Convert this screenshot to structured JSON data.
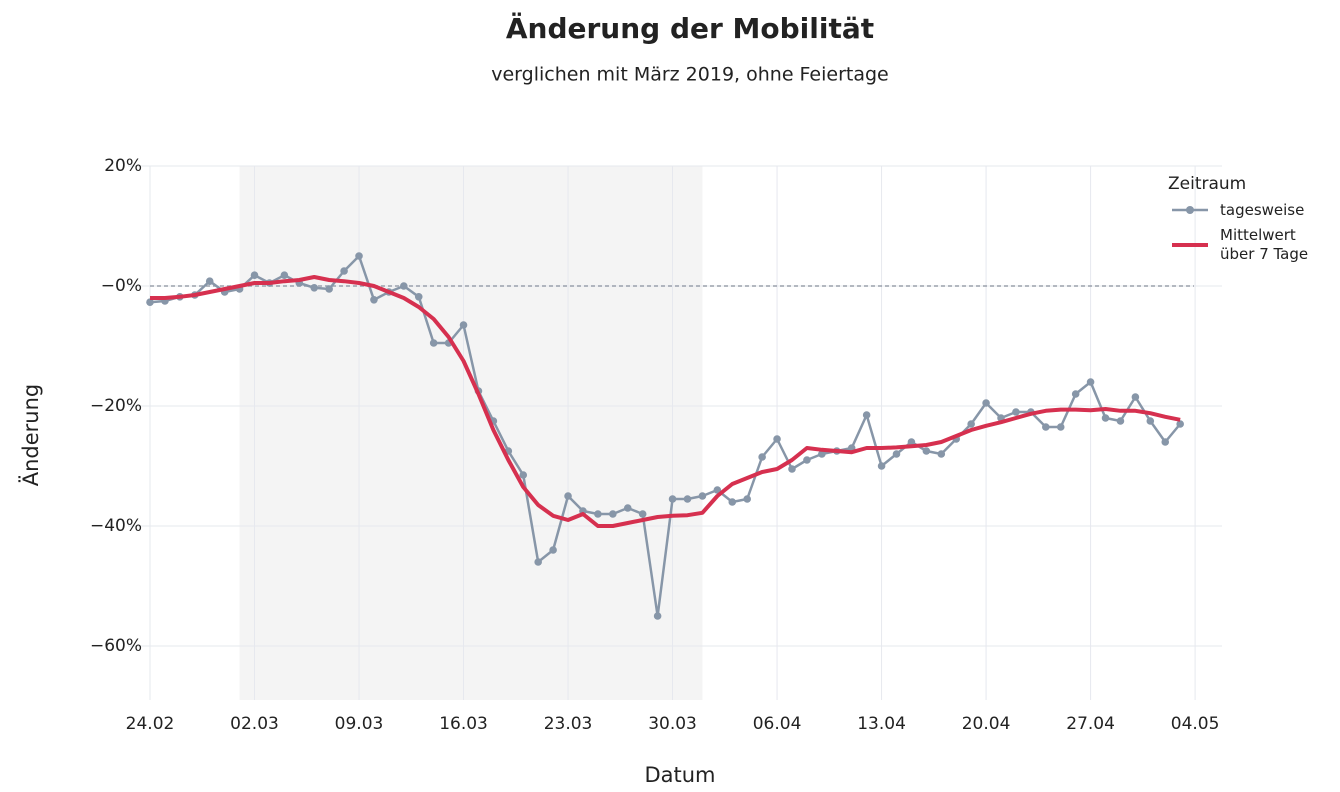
{
  "chart_data": {
    "type": "line",
    "title": "Änderung der Mobilität",
    "subtitle": "verglichen mit März 2019, ohne Feiertage",
    "x_label": "Datum",
    "y_label": "Änderung",
    "legend_title": "Zeitraum",
    "legend_position": "top-right",
    "grid": true,
    "hline": 0,
    "shaded_x": [
      "01.03",
      "01.04"
    ],
    "x": [
      "24.02",
      "25.02",
      "26.02",
      "27.02",
      "28.02",
      "29.02",
      "01.03",
      "02.03",
      "03.03",
      "04.03",
      "05.03",
      "06.03",
      "07.03",
      "08.03",
      "09.03",
      "10.03",
      "11.03",
      "12.03",
      "13.03",
      "14.03",
      "15.03",
      "16.03",
      "17.03",
      "18.03",
      "19.03",
      "20.03",
      "21.03",
      "22.03",
      "23.03",
      "24.03",
      "25.03",
      "26.03",
      "27.03",
      "28.03",
      "29.03",
      "30.03",
      "31.03",
      "01.04",
      "02.04",
      "03.04",
      "04.04",
      "05.04",
      "06.04",
      "07.04",
      "08.04",
      "09.04",
      "10.04",
      "11.04",
      "12.04",
      "13.04",
      "14.04",
      "15.04",
      "16.04",
      "17.04",
      "18.04",
      "19.04",
      "20.04",
      "21.04",
      "22.04",
      "23.04",
      "24.04",
      "25.04",
      "26.04",
      "27.04",
      "28.04",
      "29.04",
      "30.04",
      "01.05",
      "02.05",
      "03.05",
      "04.05"
    ],
    "xticks": [
      "24.02",
      "02.03",
      "09.03",
      "16.03",
      "23.03",
      "30.03",
      "06.04",
      "13.04",
      "20.04",
      "27.04",
      "04.05"
    ],
    "ylim": [
      -69,
      20
    ],
    "yticks": [
      {
        "value": -60,
        "label": "−60%"
      },
      {
        "value": -40,
        "label": "−40%"
      },
      {
        "value": -20,
        "label": "−20%"
      },
      {
        "value": 0,
        "label": "−0%"
      },
      {
        "value": 20,
        "label": "20%"
      }
    ],
    "series": [
      {
        "name": "tagesweise",
        "color": "#8796a8",
        "markers": true,
        "values": [
          -2.7,
          -2.5,
          -1.8,
          -1.5,
          0.8,
          -1,
          -0.5,
          1.8,
          0.5,
          1.8,
          0.5,
          -0.3,
          -0.5,
          2.5,
          5,
          -2.3,
          -1,
          0,
          -1.8,
          -9.5,
          -9.5,
          -6.5,
          -17.5,
          -22.5,
          -27.5,
          -31.5,
          -46,
          -44,
          -35,
          -37.5,
          -38,
          -38,
          -37,
          -38,
          -55,
          -35.5,
          -35.5,
          -35,
          -34,
          -36,
          -35.5,
          -28.5,
          -25.5,
          -30.5,
          -29,
          -28,
          -27.5,
          -27,
          -21.5,
          -30,
          -28,
          -26,
          -27.5,
          -28,
          -25.5,
          -23,
          -19.5,
          -22,
          -21,
          -21,
          -23.5,
          -23.5,
          -18,
          -16,
          -22,
          -22.5,
          -18.5,
          -22.5,
          -26,
          -23,
          null
        ]
      },
      {
        "name": "Mittelwert über 7 Tage",
        "color": "#d6304f",
        "markers": false,
        "values": [
          -2,
          -2,
          -1.8,
          -1.5,
          -1,
          -0.5,
          0,
          0.5,
          0.5,
          0.8,
          1,
          1.5,
          1,
          0.8,
          0.5,
          0,
          -1,
          -2,
          -3.5,
          -5.5,
          -8.5,
          -12.5,
          -18,
          -24,
          -29,
          -33.5,
          -36.5,
          -38.3,
          -39,
          -38,
          -40,
          -40,
          -39.5,
          -39,
          -38.5,
          -38.3,
          -38.2,
          -37.8,
          -35,
          -33,
          -32,
          -31,
          -30.5,
          -29,
          -27,
          -27.3,
          -27.5,
          -27.7,
          -27,
          -27,
          -26.9,
          -26.7,
          -26.5,
          -26,
          -25,
          -24,
          -23.3,
          -22.7,
          -22,
          -21.3,
          -20.8,
          -20.6,
          -20.6,
          -20.7,
          -20.5,
          -20.8,
          -20.8,
          -21.2,
          -21.8,
          -22.3,
          null
        ]
      }
    ]
  }
}
